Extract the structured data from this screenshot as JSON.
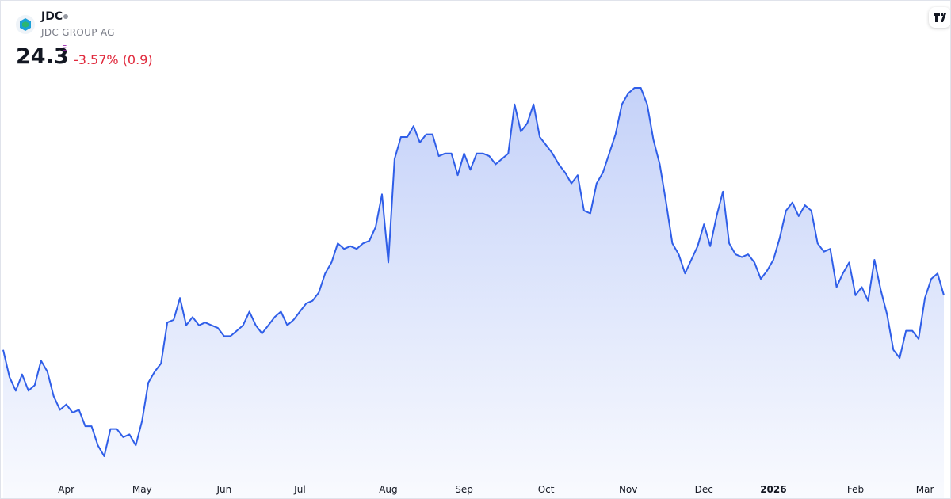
{
  "header": {
    "symbol": "JDC",
    "name": "JDC GROUP AG",
    "price": "24.3",
    "flag": "E",
    "change": "-3.57% (0.9)"
  },
  "chart_data": {
    "type": "area",
    "color": "#2f5ee8",
    "categories": [
      null,
      null,
      null,
      null,
      null,
      null,
      null,
      null,
      null,
      null,
      "Apr",
      null,
      null,
      null,
      null,
      null,
      null,
      null,
      null,
      null,
      null,
      null,
      "May",
      null,
      null,
      null,
      null,
      null,
      null,
      null,
      null,
      null,
      null,
      null,
      null,
      "Jun",
      null,
      null,
      null,
      null,
      null,
      null,
      null,
      null,
      null,
      null,
      null,
      "Jul",
      null,
      null,
      null,
      null,
      null,
      null,
      null,
      null,
      null,
      null,
      null,
      null,
      null,
      "Aug",
      null,
      null,
      null,
      null,
      null,
      null,
      null,
      null,
      null,
      null,
      null,
      "Sep",
      null,
      null,
      null,
      null,
      null,
      null,
      null,
      null,
      null,
      null,
      null,
      null,
      "Oct",
      null,
      null,
      null,
      null,
      null,
      null,
      null,
      null,
      null,
      null,
      null,
      null,
      "Nov",
      null,
      null,
      null,
      null,
      null,
      null,
      null,
      null,
      null,
      null,
      null,
      "Dec",
      null,
      null,
      null,
      null,
      null,
      null,
      null,
      null,
      null,
      null,
      "2026",
      null,
      null,
      null,
      null,
      null,
      null,
      null,
      null,
      null,
      null,
      null,
      null,
      "Feb",
      null,
      null,
      null,
      null,
      null,
      null,
      null,
      null,
      null,
      null,
      "Mar",
      null,
      null,
      null
    ],
    "values": [
      22.3,
      21.3,
      20.8,
      21.4,
      20.8,
      21.0,
      21.9,
      21.5,
      20.6,
      20.1,
      20.3,
      20.0,
      20.1,
      19.5,
      19.5,
      18.8,
      18.4,
      19.4,
      19.4,
      19.1,
      19.2,
      18.8,
      19.7,
      21.1,
      21.5,
      21.8,
      23.3,
      23.4,
      24.2,
      23.2,
      23.5,
      23.2,
      23.3,
      23.2,
      23.1,
      22.8,
      22.8,
      23.0,
      23.2,
      23.7,
      23.2,
      22.9,
      23.2,
      23.5,
      23.7,
      23.2,
      23.4,
      23.7,
      24.0,
      24.1,
      24.4,
      25.1,
      25.5,
      26.2,
      26.0,
      26.1,
      26.0,
      26.2,
      26.3,
      26.8,
      28.0,
      25.5,
      29.3,
      30.1,
      30.1,
      30.5,
      29.9,
      30.2,
      30.2,
      29.4,
      29.5,
      29.5,
      28.7,
      29.5,
      28.9,
      29.5,
      29.5,
      29.4,
      29.1,
      29.3,
      29.5,
      31.3,
      30.3,
      30.6,
      31.3,
      30.1,
      29.8,
      29.5,
      29.1,
      28.8,
      28.4,
      28.7,
      27.4,
      27.3,
      28.4,
      28.8,
      29.5,
      30.2,
      31.3,
      31.7,
      31.9,
      31.9,
      31.3,
      30.0,
      29.1,
      27.7,
      26.2,
      25.8,
      25.1,
      25.6,
      26.1,
      26.9,
      26.1,
      27.2,
      28.1,
      26.2,
      25.8,
      25.7,
      25.8,
      25.5,
      24.9,
      25.2,
      25.6,
      26.4,
      27.4,
      27.7,
      27.2,
      27.6,
      27.4,
      26.2,
      25.9,
      26.0,
      24.6,
      25.1,
      25.5,
      24.3,
      24.6,
      24.1,
      25.6,
      24.5,
      23.6,
      22.3,
      22.0,
      23.0,
      23.0,
      22.7,
      24.2,
      24.9,
      25.1,
      24.3
    ]
  }
}
